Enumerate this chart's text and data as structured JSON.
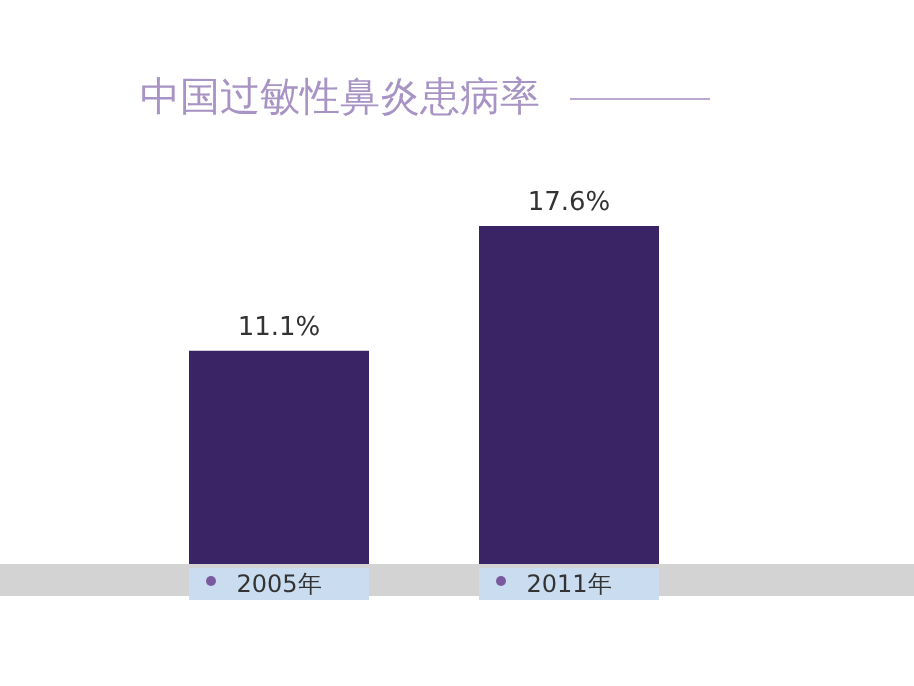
{
  "chart_data": {
    "type": "bar",
    "title": "中国过敏性鼻炎患病率",
    "categories": [
      "2005年",
      "2011年"
    ],
    "values": [
      11.1,
      17.6
    ],
    "value_labels": [
      "11.1%",
      "17.6%"
    ],
    "color": "#3b2466"
  }
}
